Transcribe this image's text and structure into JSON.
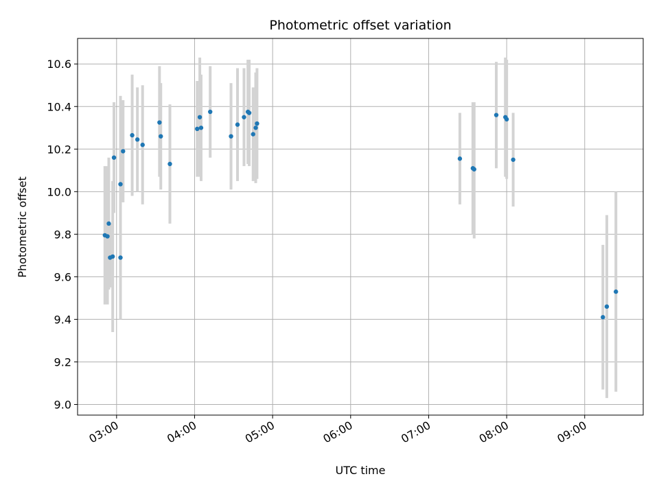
{
  "chart_data": {
    "type": "scatter",
    "title": "Photometric offset variation",
    "xlabel": "UTC time",
    "ylabel": "Photometric offset",
    "xlim": [
      "02:30",
      "09:45"
    ],
    "ylim": [
      8.95,
      10.72
    ],
    "x_ticks": [
      "03:00",
      "04:00",
      "05:00",
      "06:00",
      "07:00",
      "08:00",
      "09:00"
    ],
    "y_ticks": [
      "9.0",
      "9.2",
      "9.4",
      "9.6",
      "9.8",
      "10.0",
      "10.2",
      "10.4",
      "10.6"
    ],
    "grid": true,
    "legend": "none",
    "colors": {
      "point": "#1f77b4",
      "errorbar": "#d3d3d3",
      "grid": "#b0b0b0"
    },
    "series": [
      {
        "points": [
          {
            "time": "02:51",
            "value": 9.795,
            "low": 9.47,
            "high": 10.12
          },
          {
            "time": "02:53",
            "value": 9.79,
            "low": 9.47,
            "high": 10.12
          },
          {
            "time": "02:54",
            "value": 9.85,
            "low": 9.54,
            "high": 10.16
          },
          {
            "time": "02:55",
            "value": 9.69,
            "low": 9.55,
            "high": 9.85
          },
          {
            "time": "02:57",
            "value": 9.695,
            "low": 9.34,
            "high": 10.05
          },
          {
            "time": "02:58",
            "value": 10.16,
            "low": 9.9,
            "high": 10.42
          },
          {
            "time": "03:03",
            "value": 10.035,
            "low": 9.62,
            "high": 10.45
          },
          {
            "time": "03:03",
            "value": 9.69,
            "low": 9.4,
            "high": 10.04
          },
          {
            "time": "03:05",
            "value": 10.19,
            "low": 9.95,
            "high": 10.43
          },
          {
            "time": "03:12",
            "value": 10.265,
            "low": 9.98,
            "high": 10.55
          },
          {
            "time": "03:16",
            "value": 10.245,
            "low": 10.0,
            "high": 10.49
          },
          {
            "time": "03:20",
            "value": 10.22,
            "low": 9.94,
            "high": 10.5
          },
          {
            "time": "03:33",
            "value": 10.325,
            "low": 10.07,
            "high": 10.59
          },
          {
            "time": "03:34",
            "value": 10.26,
            "low": 10.01,
            "high": 10.51
          },
          {
            "time": "03:41",
            "value": 10.13,
            "low": 9.85,
            "high": 10.41
          },
          {
            "time": "04:02",
            "value": 10.295,
            "low": 10.07,
            "high": 10.52
          },
          {
            "time": "04:04",
            "value": 10.35,
            "low": 10.07,
            "high": 10.63
          },
          {
            "time": "04:05",
            "value": 10.3,
            "low": 10.05,
            "high": 10.55
          },
          {
            "time": "04:12",
            "value": 10.375,
            "low": 10.16,
            "high": 10.59
          },
          {
            "time": "04:28",
            "value": 10.26,
            "low": 10.01,
            "high": 10.51
          },
          {
            "time": "04:33",
            "value": 10.315,
            "low": 10.05,
            "high": 10.58
          },
          {
            "time": "04:38",
            "value": 10.35,
            "low": 10.12,
            "high": 10.58
          },
          {
            "time": "04:41",
            "value": 10.375,
            "low": 10.13,
            "high": 10.62
          },
          {
            "time": "04:42",
            "value": 10.37,
            "low": 10.12,
            "high": 10.62
          },
          {
            "time": "04:45",
            "value": 10.27,
            "low": 10.05,
            "high": 10.49
          },
          {
            "time": "04:47",
            "value": 10.3,
            "low": 10.04,
            "high": 10.56
          },
          {
            "time": "04:48",
            "value": 10.32,
            "low": 10.06,
            "high": 10.58
          },
          {
            "time": "07:24",
            "value": 10.155,
            "low": 9.94,
            "high": 10.37
          },
          {
            "time": "07:34",
            "value": 10.11,
            "low": 9.8,
            "high": 10.42
          },
          {
            "time": "07:35",
            "value": 10.105,
            "low": 9.78,
            "high": 10.42
          },
          {
            "time": "07:52",
            "value": 10.36,
            "low": 10.11,
            "high": 10.61
          },
          {
            "time": "07:59",
            "value": 10.35,
            "low": 10.07,
            "high": 10.63
          },
          {
            "time": "08:00",
            "value": 10.34,
            "low": 10.06,
            "high": 10.62
          },
          {
            "time": "08:05",
            "value": 10.15,
            "low": 9.93,
            "high": 10.37
          },
          {
            "time": "09:14",
            "value": 9.41,
            "low": 9.07,
            "high": 9.75
          },
          {
            "time": "09:17",
            "value": 9.46,
            "low": 9.03,
            "high": 9.89
          },
          {
            "time": "09:24",
            "value": 9.53,
            "low": 9.06,
            "high": 10.0
          }
        ]
      }
    ]
  }
}
